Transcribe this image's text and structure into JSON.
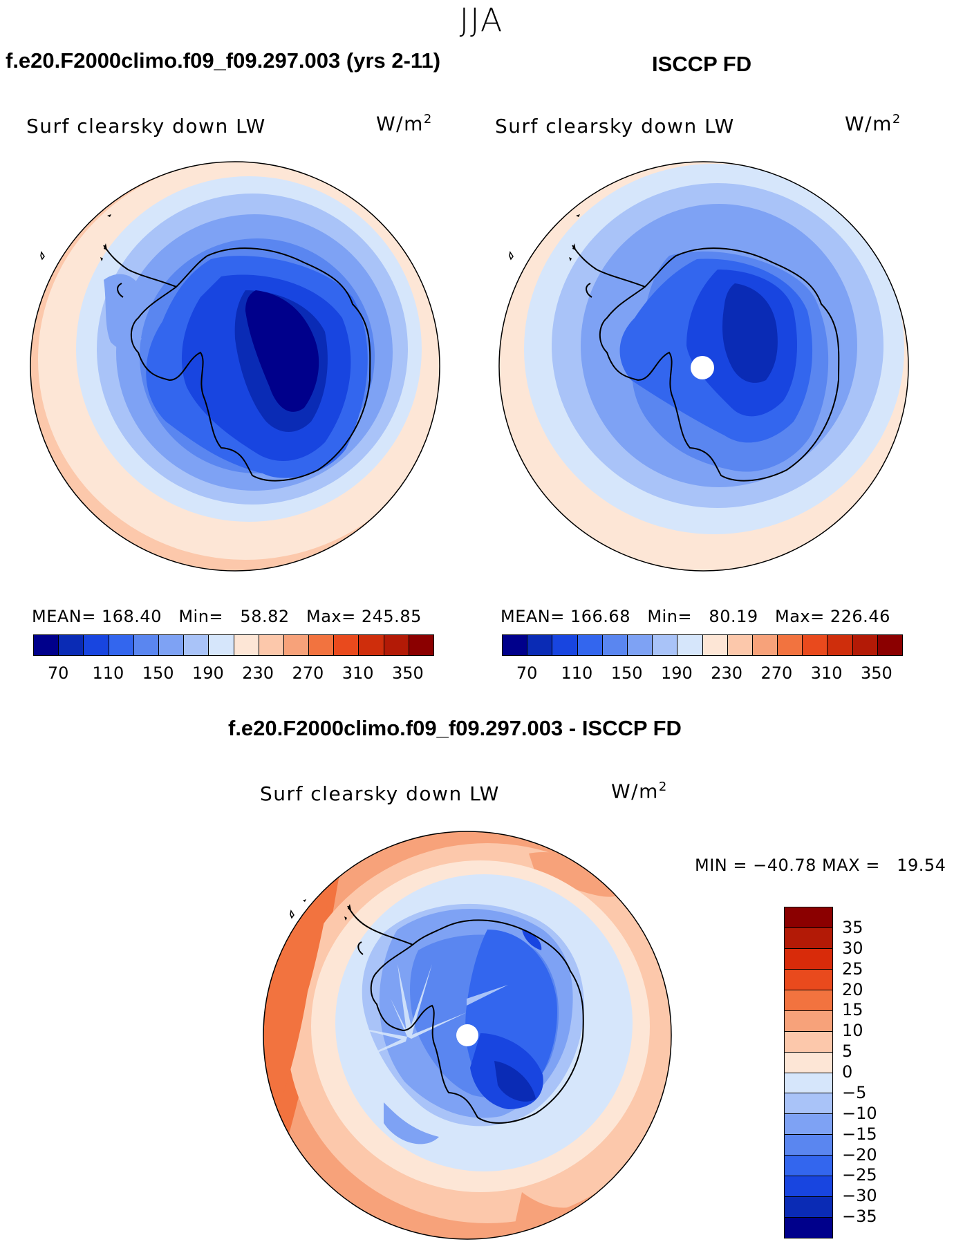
{
  "figure": {
    "season": "JJA"
  },
  "panel_model": {
    "title": "f.e20.F2000climo.f09_f09.297.003 (yrs 2-11)",
    "variable": "Surf clearsky down LW",
    "units_base": "W/m",
    "units_exp": "2",
    "stats": "MEAN= 168.40   Min=   58.82   Max= 245.85"
  },
  "panel_obs": {
    "title": "ISCCP FD",
    "variable": "Surf clearsky down LW",
    "units_base": "W/m",
    "units_exp": "2",
    "stats": "MEAN= 166.68   Min=   80.19   Max= 226.46"
  },
  "panel_diff": {
    "title": "f.e20.F2000climo.f09_f09.297.003 - ISCCP FD",
    "variable": "Surf clearsky down LW",
    "units_base": "W/m",
    "units_exp": "2",
    "stats": "MIN = −40.78 MAX =   19.54"
  },
  "colorbar_abs": {
    "colors": [
      "#00008b",
      "#0a2bb5",
      "#1845e0",
      "#3366ee",
      "#5a86f0",
      "#7ea2f4",
      "#a9c3f8",
      "#d6e6fb",
      "#fde6d6",
      "#fcc8ab",
      "#f7a27a",
      "#f2733f",
      "#e94a1d",
      "#cf2e0c",
      "#b31a06",
      "#8b0000"
    ],
    "tick_labels": [
      "70",
      "110",
      "150",
      "190",
      "230",
      "270",
      "310",
      "350"
    ]
  },
  "colorbar_diff": {
    "colors": [
      "#8b0000",
      "#b31a06",
      "#d82b0a",
      "#e94a1d",
      "#f2733f",
      "#f7a27a",
      "#fcc8ab",
      "#fde6d6",
      "#d6e6fb",
      "#a9c3f8",
      "#7ea2f4",
      "#5a86f0",
      "#3366ee",
      "#1845e0",
      "#0a2bb5",
      "#00008b"
    ],
    "tick_labels": [
      "35",
      "30",
      "25",
      "20",
      "15",
      "10",
      "5",
      "0",
      "−5",
      "−10",
      "−15",
      "−20",
      "−25",
      "−30",
      "−35"
    ]
  }
}
